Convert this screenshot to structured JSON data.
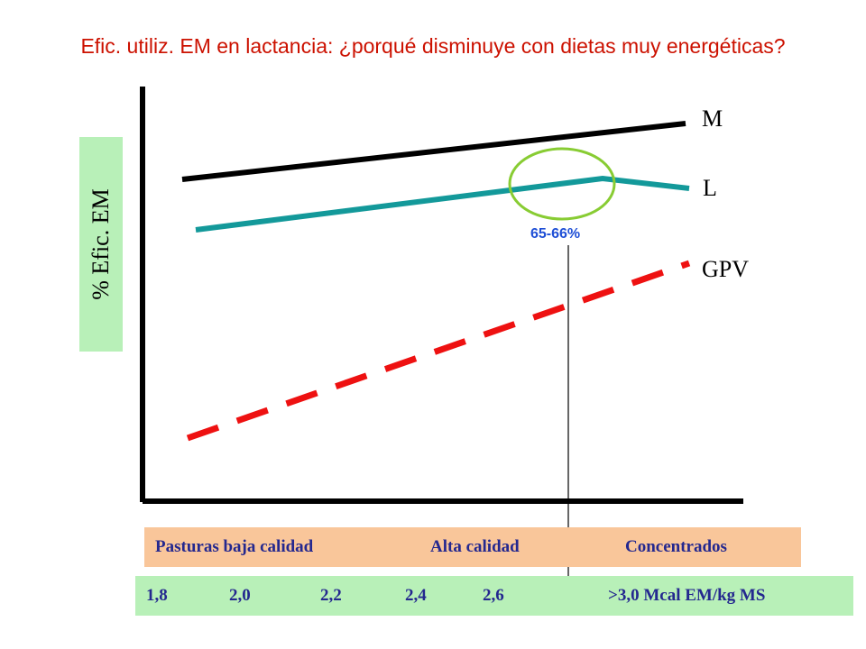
{
  "title": "Efic. utiliz. EM en lactancia: ¿porqué disminuye con dietas muy energéticas?",
  "y_axis_label": "% Efic.  EM",
  "series_labels": {
    "m": "M",
    "l": "L",
    "gpv": "GPV"
  },
  "annotation": {
    "peak_value": "65-66%"
  },
  "diet_band": {
    "low": "Pasturas baja calidad",
    "high": "Alta calidad",
    "conc": "Concentrados"
  },
  "energy_band": {
    "v18": "1,8",
    "v20": "2,0",
    "v22": "2,2",
    "v24": "2,4",
    "v26": "2,6",
    "v30": ">3,0 Mcal EM/kg MS"
  },
  "colors": {
    "title": "#cc1100",
    "line_m": "#000000",
    "line_l": "#13999a",
    "line_gpv": "#ee1111",
    "circle": "#88cc33",
    "peak_label": "#1f4fd6",
    "band_text": "#24288f",
    "diet_band_bg": "#f9c69a",
    "energy_band_bg": "#b8f0b8"
  }
}
